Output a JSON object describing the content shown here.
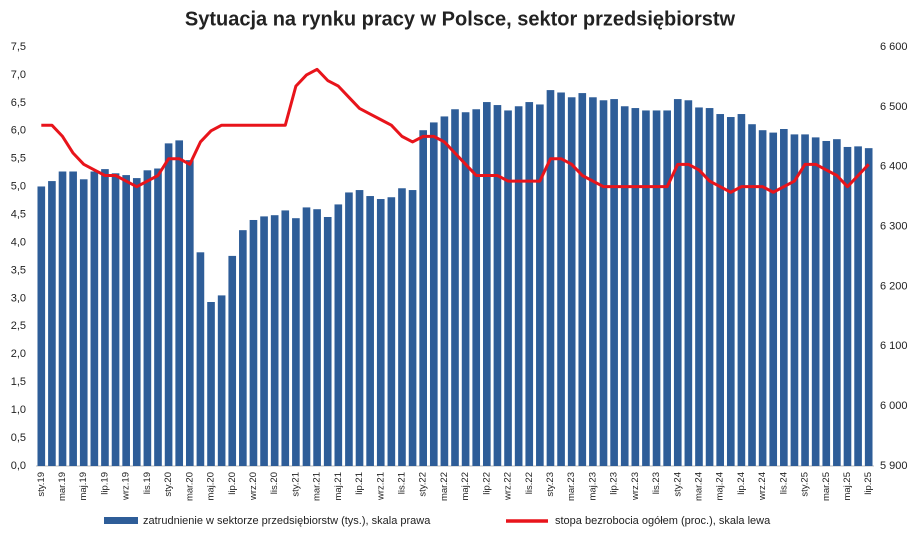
{
  "chart_data": {
    "type": "bar",
    "title": "Sytuacja na rynku pracy w Polsce, sektor przedsiębiorstw",
    "categories": [
      "sty.19",
      null,
      "mar.19",
      null,
      "maj.19",
      null,
      "lip.19",
      null,
      "wrz.19",
      null,
      "lis.19",
      null,
      "sty.20",
      null,
      "mar.20",
      null,
      "maj.20",
      null,
      "lip.20",
      null,
      "wrz.20",
      null,
      "lis.20",
      null,
      "sty.21",
      null,
      "mar.21",
      null,
      "maj.21",
      null,
      "lip.21",
      null,
      "wrz.21",
      null,
      "lis.21",
      null,
      "sty.22",
      null,
      "mar.22",
      null,
      "maj.22",
      null,
      "lip.22",
      null,
      "wrz.22",
      null,
      "lis.22",
      null,
      "sty.23",
      null,
      "mar.23",
      null,
      "maj.23",
      null,
      "lip.23",
      null,
      "wrz.23",
      null,
      "lis.23",
      null,
      "sty.24",
      null,
      "mar.24",
      null,
      "maj.24",
      null,
      "lip.24",
      null,
      "wrz.24",
      null,
      "lis.24",
      null,
      "sty.25",
      null,
      "mar.25",
      null,
      "maj.25",
      null,
      "lip.25"
    ],
    "series": [
      {
        "name": "zatrudnienie w sektorze przedsiębiorstw (tys.), skala prawa",
        "type": "bar",
        "axis": "y2",
        "color": "#2e5d98",
        "values": [
          6367,
          6376,
          6392,
          6392,
          6379,
          6392,
          6396,
          6389,
          6386,
          6381,
          6394,
          6397,
          6439,
          6444,
          6411,
          6257,
          6174,
          6185,
          6251,
          6294,
          6311,
          6317,
          6319,
          6327,
          6314,
          6332,
          6329,
          6316,
          6337,
          6357,
          6361,
          6351,
          6346,
          6349,
          6364,
          6361,
          6461,
          6474,
          6484,
          6496,
          6491,
          6496,
          6508,
          6503,
          6494,
          6501,
          6508,
          6504,
          6528,
          6524,
          6516,
          6523,
          6516,
          6511,
          6513,
          6501,
          6498,
          6494,
          6494,
          6494,
          6513,
          6511,
          6499,
          6498,
          6488,
          6483,
          6488,
          6471,
          6461,
          6457,
          6463,
          6454,
          6454,
          6449,
          6443,
          6446,
          6433,
          6434,
          6431
        ]
      },
      {
        "name": "stopa bezrobocia ogółem (proc.), skala lewa",
        "type": "line",
        "color": "#e8141b",
        "values": [
          6.1,
          6.1,
          5.9,
          5.6,
          5.4,
          5.3,
          5.2,
          5.2,
          5.1,
          5.0,
          5.1,
          5.2,
          5.5,
          5.5,
          5.4,
          5.8,
          6.0,
          6.1,
          6.1,
          6.1,
          6.1,
          6.1,
          6.1,
          6.1,
          6.8,
          7.0,
          7.1,
          6.9,
          6.8,
          6.6,
          6.4,
          6.3,
          6.2,
          6.1,
          5.9,
          5.8,
          5.9,
          5.9,
          5.8,
          5.6,
          5.4,
          5.2,
          5.2,
          5.2,
          5.1,
          5.1,
          5.1,
          5.1,
          5.5,
          5.5,
          5.4,
          5.2,
          5.1,
          5.0,
          5.0,
          5.0,
          5.0,
          5.0,
          5.0,
          5.0,
          5.4,
          5.4,
          5.3,
          5.1,
          5.0,
          4.9,
          5.0,
          5.0,
          5.0,
          4.9,
          5.0,
          5.1,
          5.4,
          5.4,
          5.3,
          5.2,
          5.0,
          5.2,
          5.4
        ]
      }
    ],
    "ylim": [
      0,
      7.5
    ],
    "yticks": [
      {
        "value": 0,
        "label": "0,0"
      },
      {
        "value": 0.5,
        "label": "0,5"
      },
      {
        "value": 1,
        "label": "1,0"
      },
      {
        "value": 1.5,
        "label": "1,5"
      },
      {
        "value": 2,
        "label": "2,0"
      },
      {
        "value": 2.5,
        "label": "2,5"
      },
      {
        "value": 3,
        "label": "3,0"
      },
      {
        "value": 3.5,
        "label": "3,5"
      },
      {
        "value": 4,
        "label": "4,0"
      },
      {
        "value": 4.5,
        "label": "4,5"
      },
      {
        "value": 5,
        "label": "5,0"
      },
      {
        "value": 5.5,
        "label": "5,5"
      },
      {
        "value": 6,
        "label": "6,0"
      },
      {
        "value": 6.5,
        "label": "6,5"
      },
      {
        "value": 7,
        "label": "7,0"
      },
      {
        "value": 7.5,
        "label": "7,5"
      }
    ],
    "y2lim": [
      5900,
      6600
    ],
    "y2ticks": [
      {
        "value": 5900,
        "label": "5 900"
      },
      {
        "value": 6000,
        "label": "6 000"
      },
      {
        "value": 6100,
        "label": "6 100"
      },
      {
        "value": 6200,
        "label": "6 200"
      },
      {
        "value": 6300,
        "label": "6 300"
      },
      {
        "value": 6400,
        "label": "6 400"
      },
      {
        "value": 6500,
        "label": "6 500"
      },
      {
        "value": 6600,
        "label": "6 600"
      }
    ],
    "grid": false,
    "legend": "bottom"
  }
}
